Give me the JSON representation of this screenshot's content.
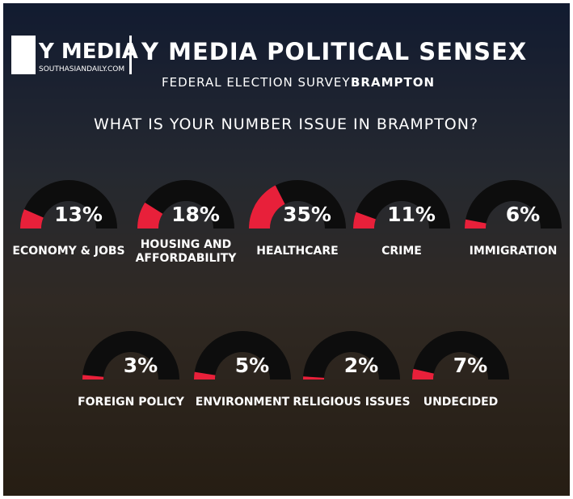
{
  "logo": {
    "name": "Y MEDIA",
    "site": "SOUTHASIANDAILY.COM"
  },
  "chart_data": {
    "type": "gauge",
    "title": "Y MEDIA POLITICAL SENSEX",
    "subtitle": "FEDERAL ELECTION SURVEY -",
    "subtitle_emphasis": "BRAMPTON",
    "question": "WHAT IS YOUR NUMBER ISSUE IN BRAMPTON?",
    "categories": [
      "ECONOMY & JOBS",
      "HOUSING AND AFFORDABILITY",
      "HEALTHCARE",
      "CRIME",
      "IMMIGRATION",
      "FOREIGN POLICY",
      "ENVIRONMENT",
      "RELIGIOUS ISSUES",
      "UNDECIDED"
    ],
    "values": [
      13,
      18,
      35,
      11,
      6,
      3,
      5,
      2,
      7
    ],
    "value_labels": [
      "13%",
      "18%",
      "35%",
      "11%",
      "6%",
      "3%",
      "5%",
      "2%",
      "7%"
    ],
    "ylim": [
      0,
      100
    ],
    "color": "#e8203a",
    "track_color": "#0d0d0d"
  }
}
